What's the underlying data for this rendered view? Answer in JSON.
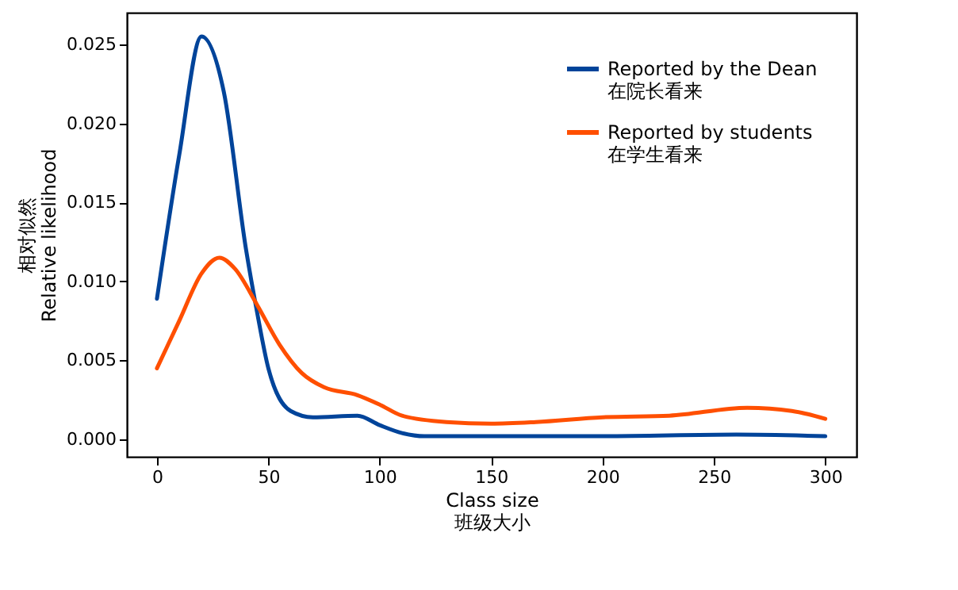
{
  "chart_data": {
    "type": "line",
    "xlabel": "Class size\n班级大小",
    "ylabel": "相对似然\nRelative likelihood",
    "x": [
      0,
      10,
      20,
      30,
      40,
      45,
      50,
      60,
      70,
      90,
      100,
      110,
      120,
      150,
      200,
      260,
      300
    ],
    "xlim": [
      -13.5,
      314
    ],
    "ylim": [
      -0.0011,
      0.027
    ],
    "xticks": [
      0,
      50,
      100,
      150,
      200,
      250,
      300
    ],
    "yticks": [
      {
        "value": 0,
        "label": "0.000"
      },
      {
        "value": 0.005,
        "label": "0.005"
      },
      {
        "value": 0.01,
        "label": "0.010"
      },
      {
        "value": 0.015,
        "label": "0.015"
      },
      {
        "value": 0.02,
        "label": "0.020"
      },
      {
        "value": 0.025,
        "label": "0.025"
      }
    ],
    "legend": "top right",
    "line_style": "solid",
    "series": [
      {
        "name": "Reported by the Dean\n在院长看来",
        "color": "#00449a",
        "values": [
          0.0089,
          0.018,
          0.0255,
          0.022,
          0.012,
          0.008,
          0.0045,
          0.0018,
          0.0014,
          0.0015,
          0.0009,
          0.0004,
          0.0002,
          0.0002,
          0.0002,
          0.0003,
          0.0002
        ]
      },
      {
        "name": "Reported by students\n在学生看来",
        "color": "#ff4f00",
        "x": [
          0,
          10,
          20,
          28,
          35,
          45,
          55,
          65,
          75,
          90,
          100,
          110,
          130,
          150,
          170,
          200,
          230,
          265,
          285,
          300
        ],
        "values": [
          0.0045,
          0.0075,
          0.0105,
          0.0115,
          0.0108,
          0.0085,
          0.006,
          0.0042,
          0.0033,
          0.0028,
          0.0022,
          0.0015,
          0.0011,
          0.001,
          0.0011,
          0.0014,
          0.0015,
          0.002,
          0.0018,
          0.0013
        ]
      }
    ]
  }
}
